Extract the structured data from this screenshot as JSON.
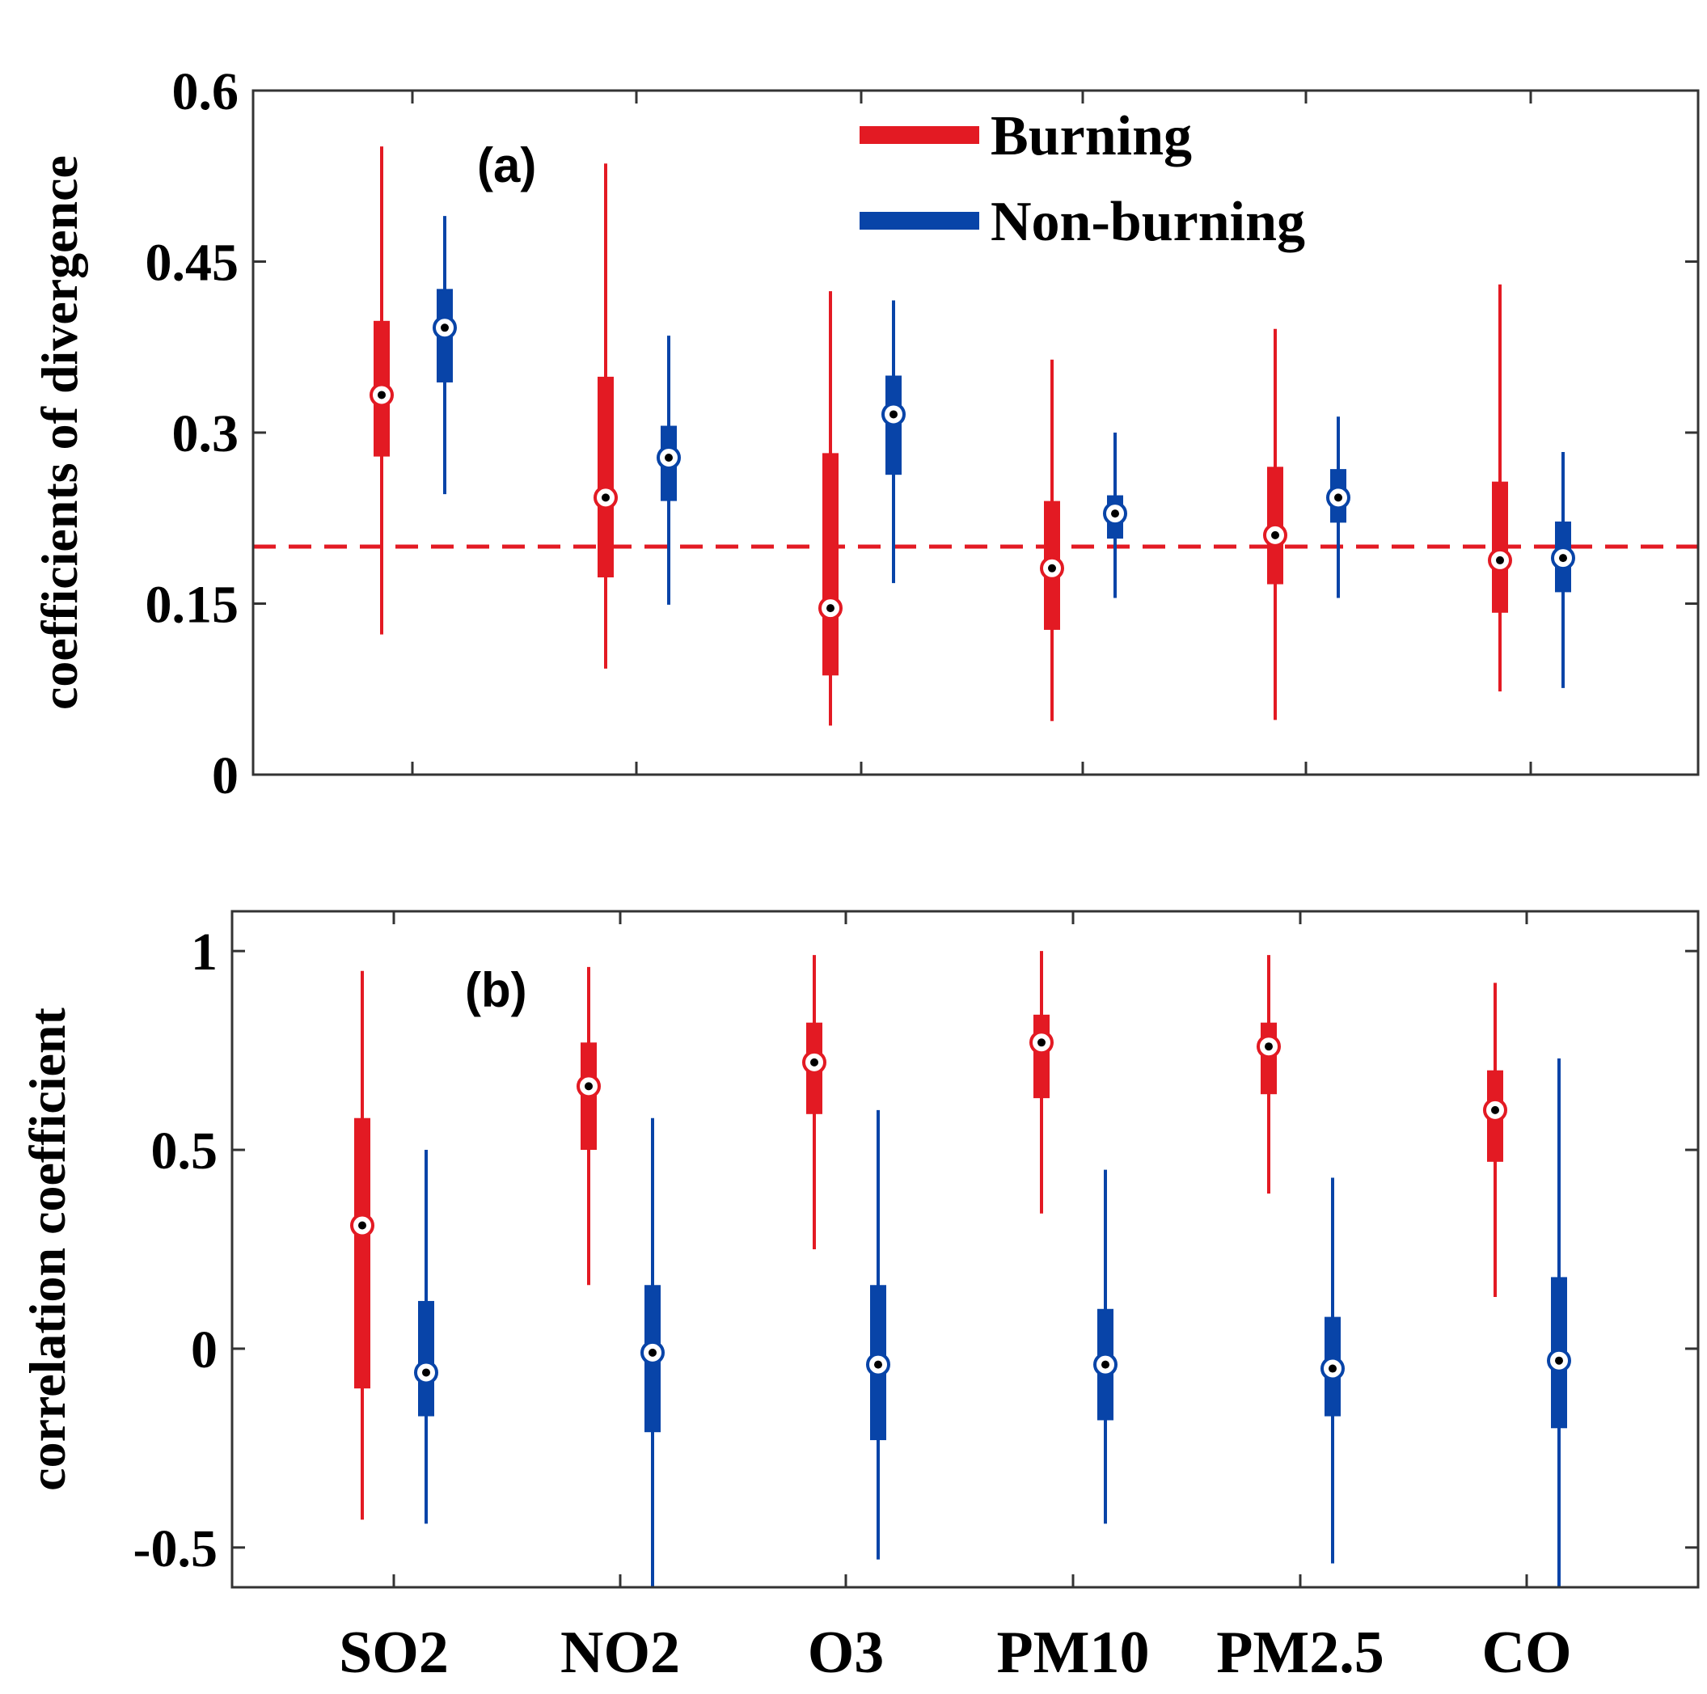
{
  "chart_data": [
    {
      "id": "a",
      "type": "box",
      "panel_label": "(a)",
      "ylabel": "coefficients of divergence",
      "ylim": [
        0,
        0.6
      ],
      "yticks": [
        0,
        0.15,
        0.3,
        0.45,
        0.6
      ],
      "ytick_labels": [
        "0",
        "0.15",
        "0.3",
        "0.45",
        "0.6"
      ],
      "reference_line": 0.2,
      "reference_line_style": "dashed-red",
      "legend": {
        "position": "top-center",
        "entries": [
          "Burning",
          "Non-burning"
        ]
      },
      "categories": [
        "SO2",
        "NO2",
        "O3",
        "PM10",
        "PM2.5",
        "CO"
      ],
      "series": [
        {
          "name": "Burning",
          "color": "#e31a23",
          "min": [
            0.123,
            0.093,
            0.043,
            0.047,
            0.048,
            0.073
          ],
          "q1": [
            0.279,
            0.173,
            0.087,
            0.127,
            0.167,
            0.142
          ],
          "median": [
            0.333,
            0.243,
            0.146,
            0.181,
            0.21,
            0.188
          ],
          "q3": [
            0.398,
            0.349,
            0.282,
            0.24,
            0.27,
            0.257
          ],
          "max": [
            0.551,
            0.536,
            0.424,
            0.364,
            0.391,
            0.43
          ]
        },
        {
          "name": "Non-burning",
          "color": "#0844a8",
          "min": [
            0.246,
            0.149,
            0.168,
            0.155,
            0.155,
            0.076
          ],
          "q1": [
            0.344,
            0.24,
            0.263,
            0.207,
            0.221,
            0.16
          ],
          "median": [
            0.392,
            0.278,
            0.316,
            0.229,
            0.243,
            0.19
          ],
          "q3": [
            0.426,
            0.306,
            0.35,
            0.245,
            0.268,
            0.222
          ],
          "max": [
            0.49,
            0.385,
            0.416,
            0.3,
            0.314,
            0.283
          ]
        }
      ]
    },
    {
      "id": "b",
      "type": "box",
      "panel_label": "(b)",
      "ylabel": "correlation coefficient",
      "ylim": [
        -0.6,
        1.1
      ],
      "yticks": [
        -0.5,
        0,
        0.5,
        1
      ],
      "ytick_labels": [
        "-0.5",
        "0",
        "0.5",
        "1"
      ],
      "categories": [
        "SO2",
        "NO2",
        "O3",
        "PM10",
        "PM2.5",
        "CO"
      ],
      "series": [
        {
          "name": "Burning",
          "color": "#e31a23",
          "min": [
            -0.43,
            0.16,
            0.25,
            0.34,
            0.39,
            0.13
          ],
          "q1": [
            -0.1,
            0.5,
            0.59,
            0.63,
            0.64,
            0.47
          ],
          "median": [
            0.31,
            0.66,
            0.72,
            0.77,
            0.76,
            0.6
          ],
          "q3": [
            0.58,
            0.77,
            0.82,
            0.84,
            0.82,
            0.7
          ],
          "max": [
            0.95,
            0.96,
            0.99,
            1.0,
            0.99,
            0.92
          ]
        },
        {
          "name": "Non-burning",
          "color": "#0844a8",
          "min": [
            -0.44,
            -0.6,
            -0.53,
            -0.44,
            -0.54,
            -0.6
          ],
          "q1": [
            -0.17,
            -0.21,
            -0.23,
            -0.18,
            -0.17,
            -0.2
          ],
          "median": [
            -0.06,
            -0.01,
            -0.04,
            -0.04,
            -0.05,
            -0.03
          ],
          "q3": [
            0.12,
            0.16,
            0.16,
            0.1,
            0.08,
            0.18
          ],
          "max": [
            0.5,
            0.58,
            0.6,
            0.45,
            0.43,
            0.73
          ]
        }
      ]
    }
  ]
}
